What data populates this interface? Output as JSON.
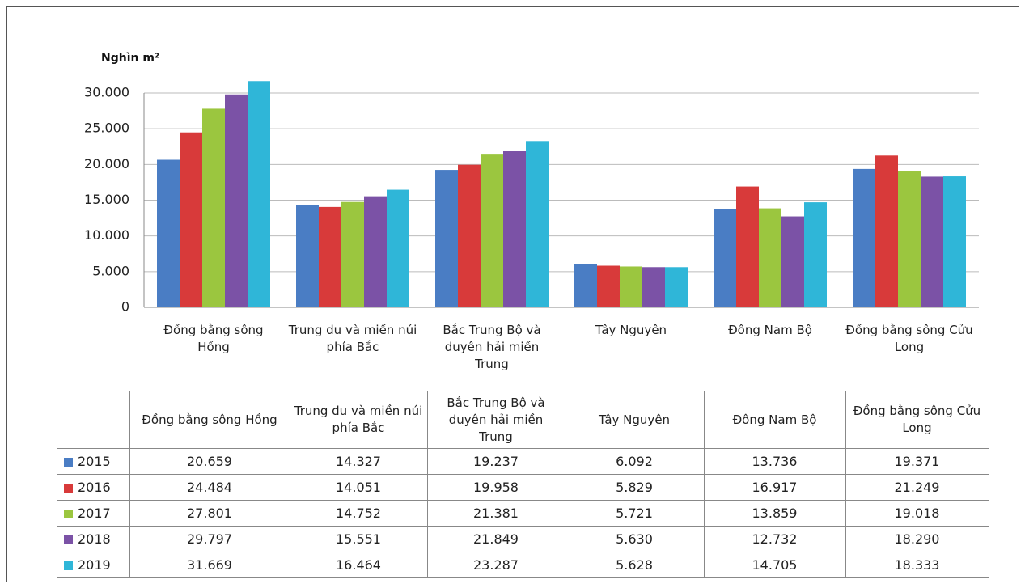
{
  "chart_data": {
    "type": "bar",
    "y_label": "Nghìn m²",
    "categories": [
      "Đồng bằng sông Hồng",
      "Trung du và miền núi phía Bắc",
      "Bắc Trung Bộ và duyên hải miền Trung",
      "Tây Nguyên",
      "Đông Nam Bộ",
      "Đồng bằng sông Cửu Long"
    ],
    "series": [
      {
        "name": "2015",
        "color": "#4a7dc4",
        "values": [
          20659,
          14327,
          19237,
          6092,
          13736,
          19371
        ],
        "value_labels": [
          "20.659",
          "14.327",
          "19.237",
          "6.092",
          "13.736",
          "19.371"
        ]
      },
      {
        "name": "2016",
        "color": "#d83a3a",
        "values": [
          24484,
          14051,
          19958,
          5829,
          16917,
          21249
        ],
        "value_labels": [
          "24.484",
          "14.051",
          "19.958",
          "5.829",
          "16.917",
          "21.249"
        ]
      },
      {
        "name": "2017",
        "color": "#9bc63f",
        "values": [
          27801,
          14752,
          21381,
          5721,
          13859,
          19018
        ],
        "value_labels": [
          "27.801",
          "14.752",
          "21.381",
          "5.721",
          "13.859",
          "19.018"
        ]
      },
      {
        "name": "2018",
        "color": "#7b52a6",
        "values": [
          29797,
          15551,
          21849,
          5630,
          12732,
          18290
        ],
        "value_labels": [
          "29.797",
          "15.551",
          "21.849",
          "5.630",
          "12.732",
          "18.290"
        ]
      },
      {
        "name": "2019",
        "color": "#2fb6d8",
        "values": [
          31669,
          16464,
          23287,
          5628,
          14705,
          18333
        ],
        "value_labels": [
          "31.669",
          "16.464",
          "23.287",
          "5.628",
          "14.705",
          "18.333"
        ]
      }
    ],
    "ylim": [
      0,
      32000
    ],
    "yticks": [
      0,
      {
        "value": 5000,
        "label": "5.000"
      },
      {
        "value": 10000,
        "label": "10.000"
      },
      {
        "value": 15000,
        "label": "15.000"
      },
      {
        "value": 20000,
        "label": "20.000"
      },
      {
        "value": 25000,
        "label": "25.000"
      },
      {
        "value": 30000,
        "label": "30.000"
      }
    ],
    "grid": true
  }
}
